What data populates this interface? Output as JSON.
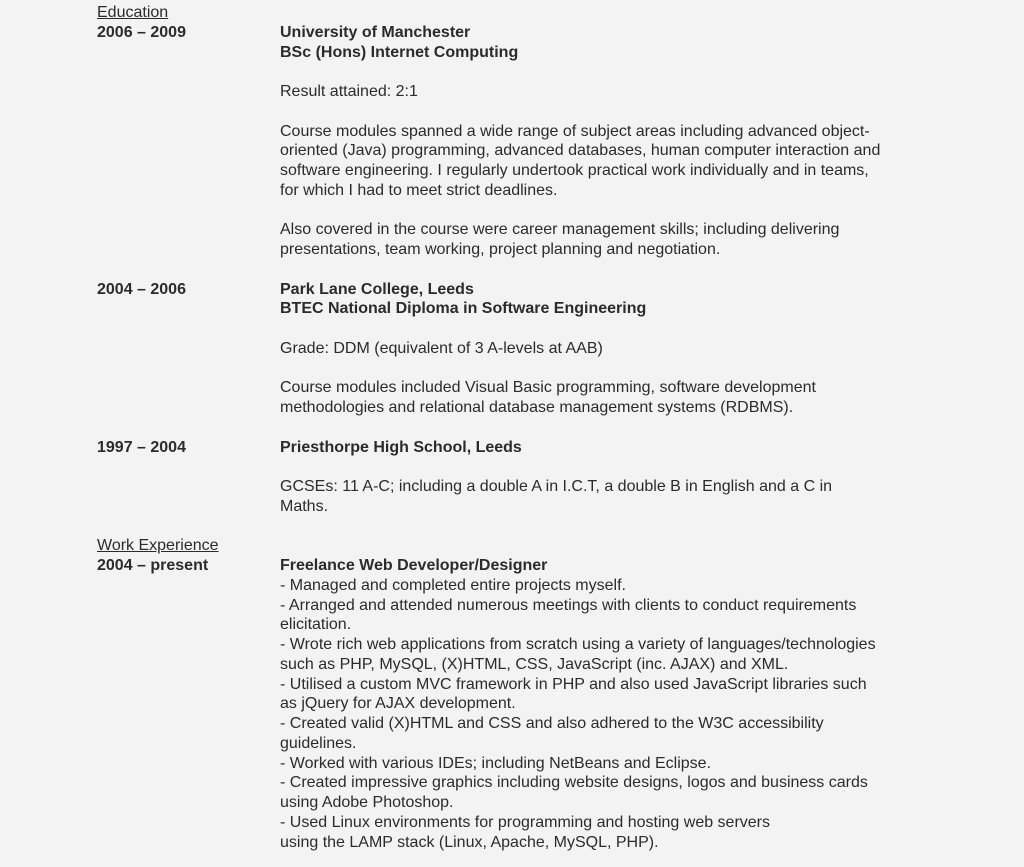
{
  "sections": [
    {
      "label": "Education",
      "entries": [
        {
          "date": "2006 – 2009",
          "titles": [
            "University of Manchester",
            "BSc (Hons) Internet Computing"
          ],
          "paragraphs": [
            [
              "Result attained: 2:1"
            ],
            [
              "Course modules spanned a wide range of subject areas including advanced object-",
              "oriented (Java) programming, advanced databases, human computer interaction and",
              "software engineering. I regularly undertook practical work individually and in teams,",
              "for which I had to meet strict deadlines."
            ],
            [
              "Also covered in the course were career management skills; including delivering",
              "presentations, team working, project planning and negotiation."
            ]
          ]
        },
        {
          "date": "2004 – 2006",
          "titles": [
            "Park Lane College, Leeds",
            "BTEC National Diploma in Software Engineering"
          ],
          "paragraphs": [
            [
              "Grade: DDM (equivalent of 3 A-levels at AAB)"
            ],
            [
              "Course modules included Visual Basic programming, software development",
              "methodologies and relational database management systems (RDBMS)."
            ]
          ]
        },
        {
          "date": "1997 – 2004",
          "titles": [
            "Priesthorpe High School, Leeds"
          ],
          "paragraphs": [
            [
              "GCSEs: 11 A-C; including a double A in I.C.T, a double B in English and a C in",
              "Maths."
            ]
          ]
        }
      ]
    },
    {
      "label": "Work Experience",
      "entries": [
        {
          "date": "2004 – present",
          "titles": [
            "Freelance Web Developer/Designer"
          ],
          "inline": [
            "- Managed and completed entire projects myself.",
            "- Arranged and attended numerous meetings with clients to conduct requirements",
            "elicitation.",
            "- Wrote rich web applications from scratch using a variety of languages/technologies",
            "such as PHP, MySQL, (X)HTML, CSS, JavaScript (inc. AJAX) and XML.",
            "- Utilised a custom MVC framework in PHP and also used JavaScript libraries such",
            "as jQuery for AJAX development.",
            "- Created valid (X)HTML and CSS and also adhered to the W3C accessibility",
            "guidelines.",
            "- Worked with various IDEs; including NetBeans and Eclipse.",
            "- Created impressive graphics including website designs, logos and business cards",
            "using Adobe Photoshop.",
            "- Used Linux environments for programming and hosting web servers",
            "using the LAMP stack (Linux, Apache, MySQL, PHP)."
          ]
        }
      ]
    }
  ]
}
